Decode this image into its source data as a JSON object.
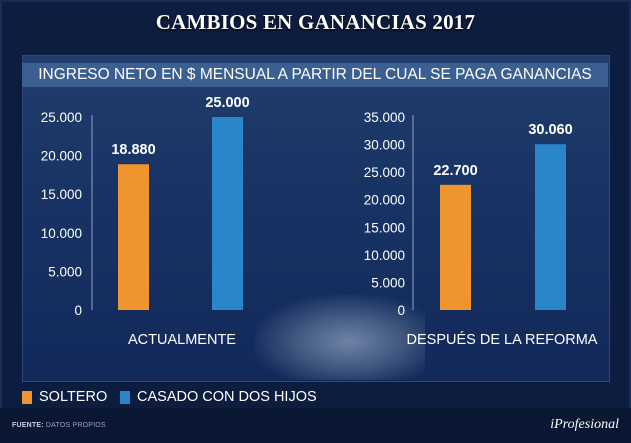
{
  "title": "CAMBIOS EN GANANCIAS 2017",
  "subtitle": "INGRESO NETO EN $ MENSUAL A PARTIR DEL CUAL SE PAGA GANANCIAS",
  "colors": {
    "soltero": "#ef9530",
    "casado": "#2a85c9"
  },
  "chart_data": [
    {
      "type": "bar",
      "xlabel": "ACTUALMENTE",
      "ylim": [
        0,
        25000
      ],
      "yticks": [
        "0",
        "5.000",
        "10.000",
        "15.000",
        "20.000",
        "25.000"
      ],
      "ytick_values": [
        0,
        5000,
        10000,
        15000,
        20000,
        25000
      ],
      "series": [
        {
          "name": "SOLTERO",
          "value": 18880,
          "label": "18.880"
        },
        {
          "name": "CASADO CON DOS HIJOS",
          "value": 25000,
          "label": "25.000"
        }
      ]
    },
    {
      "type": "bar",
      "xlabel": "DESPUÉS DE LA REFORMA",
      "ylim": [
        0,
        35000
      ],
      "yticks": [
        "0",
        "5.000",
        "10.000",
        "15.000",
        "20.000",
        "25.000",
        "30.000",
        "35.000"
      ],
      "ytick_values": [
        0,
        5000,
        10000,
        15000,
        20000,
        25000,
        30000,
        35000
      ],
      "series": [
        {
          "name": "SOLTERO",
          "value": 22700,
          "label": "22.700"
        },
        {
          "name": "CASADO CON DOS HIJOS",
          "value": 30060,
          "label": "30.060"
        }
      ]
    }
  ],
  "legend": [
    {
      "name": "SOLTERO",
      "color": "#ef9530"
    },
    {
      "name": "CASADO CON DOS HIJOS",
      "color": "#2a85c9"
    }
  ],
  "footer": {
    "source_label": "FUENTE:",
    "source_text": "DATOS PROPIOS",
    "brand": "iProfesional"
  }
}
